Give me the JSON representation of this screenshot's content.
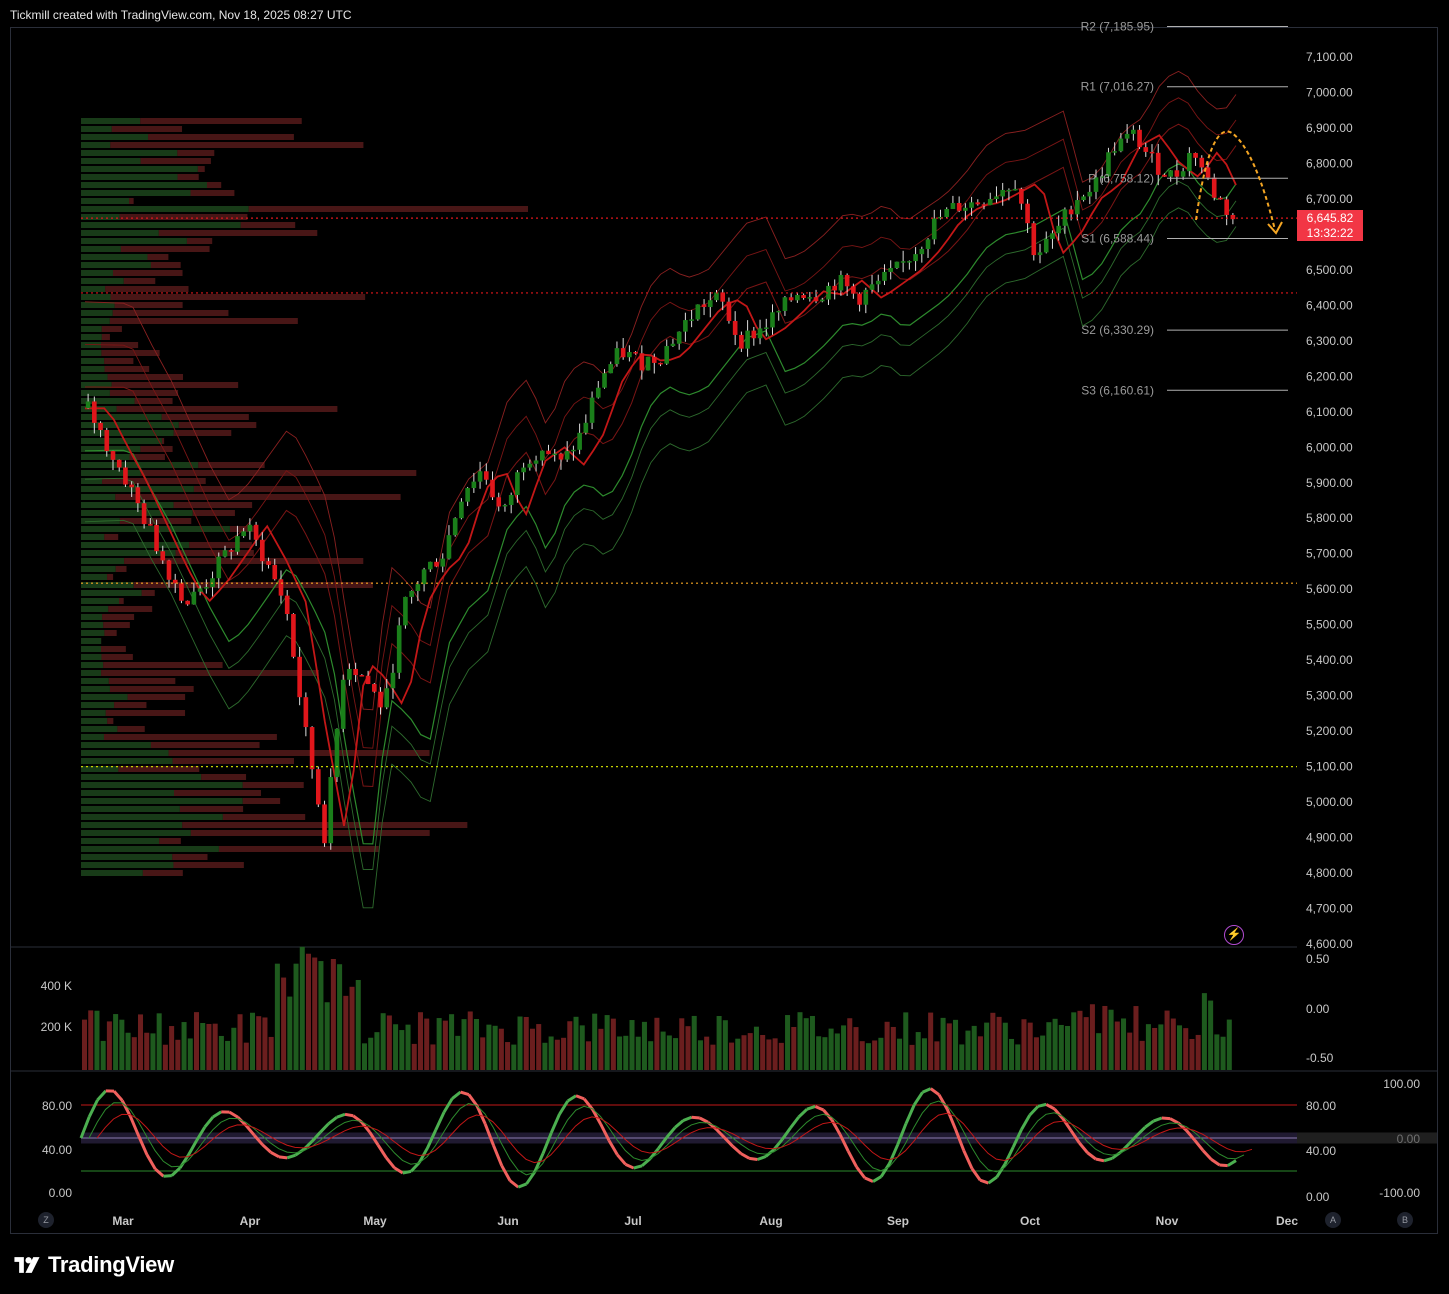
{
  "header": {
    "attribution": "Tickmill created with TradingView.com, Nov 18, 2025 08:27 UTC"
  },
  "footer": {
    "brand": "TradingView"
  },
  "buttons": {
    "z": "Z",
    "a": "A",
    "b": "B"
  },
  "last_price": {
    "value": "6,645.82",
    "countdown": "13:32:22"
  },
  "colors": {
    "up": "#1a7f1a",
    "down": "#e0161b",
    "band_green": "#2d8a2d",
    "band_red": "#a02020",
    "pivot_line": "#b0b0b0",
    "orange": "#f5a623"
  },
  "chart_data": [
    {
      "type": "candlestick",
      "price_axis": {
        "ticks": [
          "7,100.00",
          "7,000.00",
          "6,900.00",
          "6,800.00",
          "6,700.00",
          "6,600.00",
          "6,500.00",
          "6,400.00",
          "6,300.00",
          "6,200.00",
          "6,100.00",
          "6,000.00",
          "5,900.00",
          "5,800.00",
          "5,700.00",
          "5,600.00",
          "5,500.00",
          "5,400.00",
          "5,300.00",
          "5,200.00",
          "5,100.00",
          "5,000.00",
          "4,900.00",
          "4,800.00",
          "4,700.00",
          "4,600.00"
        ],
        "ylim": [
          4600,
          7100
        ]
      },
      "time_axis": {
        "ticks": [
          "Mar",
          "Apr",
          "May",
          "Jun",
          "Jul",
          "Aug",
          "Sep",
          "Oct",
          "Nov",
          "Dec"
        ]
      },
      "pivots": [
        {
          "label": "R2 (7,185.95)",
          "value": 7185.95
        },
        {
          "label": "R1 (7,016.27)",
          "value": 7016.27
        },
        {
          "label": "P (6,758.12)",
          "value": 6758.12
        },
        {
          "label": "S1 (6,588.44)",
          "value": 6588.44
        },
        {
          "label": "S2 (6,330.29)",
          "value": 6330.29
        },
        {
          "label": "S3 (6,160.61)",
          "value": 6160.61
        }
      ],
      "horizontal_levels": [
        {
          "value": 6645.82,
          "style": "dotted",
          "color": "#e0161b"
        },
        {
          "value": 6435,
          "style": "dotted",
          "color": "#e0161b"
        },
        {
          "value": 5617,
          "style": "dotted",
          "color": "#f5a623"
        },
        {
          "value": 5100,
          "style": "dotted",
          "color": "#c8d400"
        }
      ],
      "close_path": [
        6110,
        6000,
        5900,
        5780,
        5660,
        5560,
        5620,
        5700,
        5780,
        5680,
        5560,
        5200,
        4900,
        5400,
        5350,
        5260,
        5550,
        5650,
        5700,
        5880,
        5940,
        5800,
        5960,
        6000,
        5950,
        6040,
        6200,
        6270,
        6240,
        6260,
        6330,
        6400,
        6420,
        6300,
        6330,
        6380,
        6440,
        6430,
        6470,
        6420,
        6460,
        6500,
        6560,
        6640,
        6680,
        6690,
        6720,
        6750,
        6540,
        6600,
        6700,
        6740,
        6850,
        6880,
        6800,
        6760,
        6840,
        6720,
        6645.82
      ]
    },
    {
      "type": "bar",
      "name": "volume",
      "left_axis": {
        "ticks": [
          "400 K",
          "200 K"
        ]
      },
      "right_axis": {
        "ticks": [
          "0.50",
          "0.00",
          "-0.50"
        ]
      }
    },
    {
      "type": "line",
      "name": "oscillator",
      "left_axis": {
        "ticks": [
          "80.00",
          "40.00",
          "0.00"
        ]
      },
      "right_axis": {
        "ticks": [
          "80.00",
          "40.00",
          "0.00"
        ]
      },
      "far_right_axis": {
        "ticks": [
          "100.00",
          "0.00",
          "-100.00"
        ]
      },
      "levels": [
        80,
        50,
        20
      ]
    }
  ]
}
